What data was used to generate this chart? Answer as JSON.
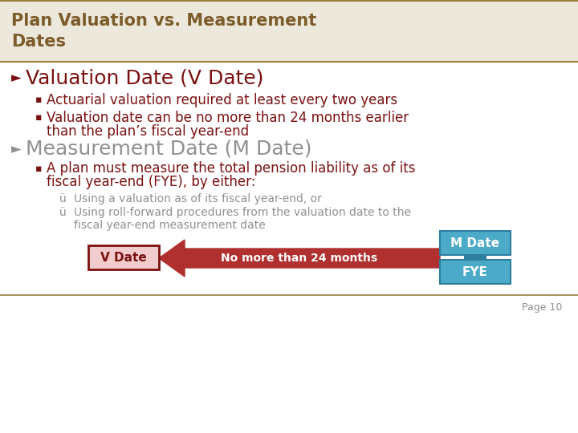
{
  "title": "Plan Valuation vs. Measurement\nDates",
  "title_color": "#7B5C2A",
  "header_bg": "#EDE8DC",
  "header_line_color": "#9A8040",
  "bg_color": "#FFFFFF",
  "dark_red": "#7B1010",
  "gray": "#909090",
  "bullet1_header": "Valuation Date (V Date)",
  "bullet1_sub1": "Actuarial valuation required at least every two years",
  "bullet1_sub2a": "Valuation date can be no more than 24 months earlier",
  "bullet1_sub2b": "than the plan’s fiscal year-end",
  "bullet2_header": "Measurement Date (M Date)",
  "bullet2_sub1a": "A plan must measure the total pension liability as of its",
  "bullet2_sub1b": "fiscal year-end (FYE), by either:",
  "check1": "Using a valuation as of its fiscal year-end, or",
  "check2a": "Using roll-forward procedures from the valuation date to the",
  "check2b": "fiscal year-end measurement date",
  "vdate_label": "V Date",
  "mdate_label": "M Date",
  "fye_label": "FYE",
  "arrow_label": "No more than 24 months",
  "page_label": "Page 10",
  "vdate_box_facecolor": "#F2CCCC",
  "vdate_box_edgecolor": "#7B1010",
  "mdate_box_facecolor": "#4BAAC8",
  "mdate_box_edgecolor": "#2E7EA0",
  "fye_box_facecolor": "#4BAAC8",
  "fye_box_edgecolor": "#2E7EA0",
  "arrow_color": "#B03030",
  "sep_color": "#2E7EA0"
}
